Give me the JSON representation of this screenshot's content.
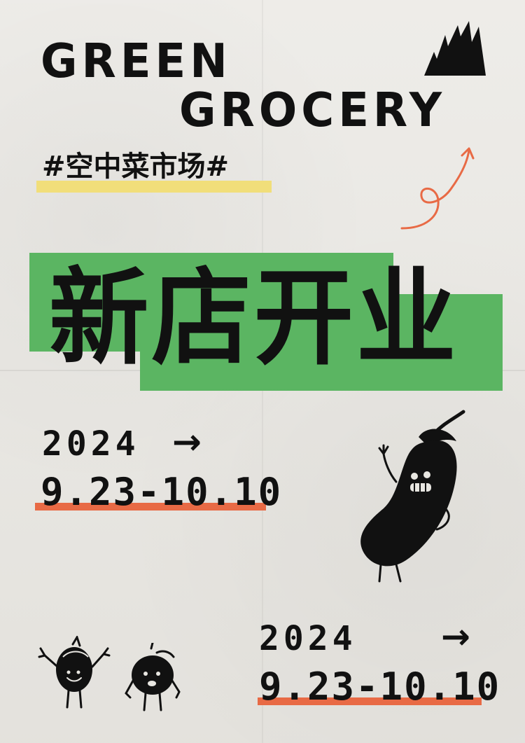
{
  "title": {
    "line1": "GREEN",
    "line2": "GROCERY"
  },
  "tag": "#空中菜市场#",
  "headline": "新店开业",
  "dates": [
    {
      "year": "2024",
      "arrow": "→",
      "range": "9.23-10.10"
    },
    {
      "year": "2024",
      "arrow": "→",
      "range": "9.23-10.10"
    }
  ],
  "colors": {
    "background": "#e8e6e1",
    "ink": "#111111",
    "green": "#5bb562",
    "yellow_highlight": "#f1de7a",
    "orange_underline": "#e86a45"
  },
  "icons": [
    "brand-logo-icon",
    "curly-arrow-icon",
    "eggplant-mascot-icon",
    "small-vegetable-mascot-icon",
    "onion-mascot-icon"
  ]
}
